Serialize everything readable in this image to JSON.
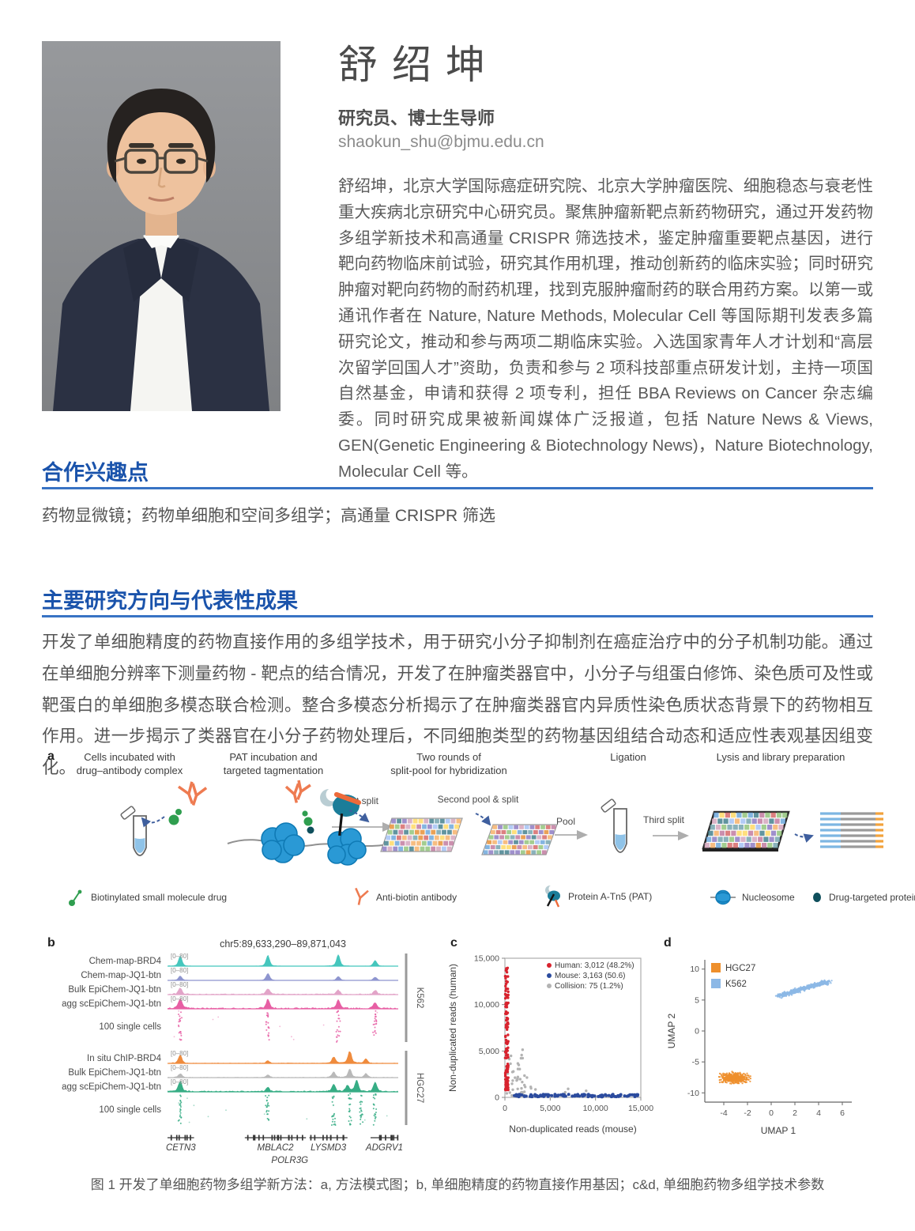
{
  "profile": {
    "name": "舒绍坤",
    "title": "研究员、博士生导师",
    "email": "shaokun_shu@bjmu.edu.cn",
    "bio": "舒绍坤，北京大学国际癌症研究院、北京大学肿瘤医院、细胞稳态与衰老性重大疾病北京研究中心研究员。聚焦肿瘤新靶点新药物研究，通过开发药物多组学新技术和高通量 CRISPR 筛选技术，鉴定肿瘤重要靶点基因，进行靶向药物临床前试验，研究其作用机理，推动创新药的临床实验；同时研究肿瘤对靶向药物的耐药机理，找到克服肿瘤耐药的联合用药方案。以第一或通讯作者在 Nature, Nature Methods, Molecular Cell 等国际期刊发表多篇研究论文，推动和参与两项二期临床实验。入选国家青年人才计划和“高层次留学回国人才”资助，负责和参与 2 项科技部重点研发计划，主持一项国自然基金，申请和获得 2 项专利，担任 BBA Reviews on Cancer 杂志编委。同时研究成果被新闻媒体广泛报道，包括 Nature News & Views, GEN(Genetic Engineering & Biotechnology News)，Nature Biotechnology, Molecular Cell 等。"
  },
  "sections": {
    "interests": {
      "heading": "合作兴趣点",
      "text": "药物显微镜；药物单细胞和空间多组学；高通量 CRISPR 筛选"
    },
    "research": {
      "heading": "主要研究方向与代表性成果",
      "text": "开发了单细胞精度的药物直接作用的多组学技术，用于研究小分子抑制剂在癌症治疗中的分子机制功能。通过在单细胞分辨率下测量药物 - 靶点的结合情况，开发了在肿瘤类器官中，小分子与组蛋白修饰、染色质可及性或靶蛋白的单细胞多模态联合检测。整合多模态分析揭示了在肿瘤类器官内异质性染色质状态背景下的药物相互作用。进一步揭示了类器官在小分子药物处理后，不同细胞类型的药物基因组结合动态和适应性表观基因组变化。"
    }
  },
  "colors": {
    "heading_blue": "#1a53ab",
    "rule_blue": "#3873c4",
    "body_gray": "#555555"
  },
  "figure": {
    "panel_a": {
      "label": "a",
      "steps": [
        "Cells incubated with\ndrug–antibody complex",
        "PAT incubation and\ntargeted tagmentation",
        "Two rounds of\nsplit-pool for hybridization",
        "Ligation",
        "Lysis and library preparation"
      ],
      "flow_labels": {
        "first_split": "First split",
        "second_pool_split": "Second pool & split",
        "pool": "Pool",
        "third_split": "Third split"
      },
      "legend": [
        {
          "icon": "biotinylated-drug-icon",
          "label": "Biotinylated small molecule drug",
          "color": "#2f9e4f"
        },
        {
          "icon": "anti-biotin-antibody-icon",
          "label": "Anti-biotin antibody",
          "color": "#ee7b51"
        },
        {
          "icon": "protein-a-tn5-icon",
          "label": "Protein A-Tn5 (PAT)",
          "color": "#1b7d99"
        },
        {
          "icon": "nucleosome-icon",
          "label": "Nucleosome",
          "color": "#2a99d5"
        },
        {
          "icon": "drug-targeted-protein-icon",
          "label": "Drug-targeted protein",
          "color": "#0f4f5c"
        }
      ]
    },
    "caption": "图 1 开发了单细胞药物多组学新方法：a, 方法模式图；b, 单细胞精度的药物直接作用基因；c&d, 单细胞药物多组学技术参数"
  },
  "chart_data": [
    {
      "id": "b",
      "panel_label": "b",
      "type": "genome-tracks",
      "region": "chr5:89,633,290–89,871,043",
      "range": "[0–80]",
      "tracks": [
        {
          "label": "Chem-map-BRD4",
          "group": "K562",
          "color": "#45c6bd",
          "type": "signal",
          "noise": 0.03,
          "peaks": [
            [
              0.055,
              0.8
            ],
            [
              0.435,
              0.85
            ],
            [
              0.74,
              0.9
            ],
            [
              0.9,
              0.45
            ]
          ]
        },
        {
          "label": "Chem-map-JQ1-btn",
          "group": "K562",
          "color": "#8e95cf",
          "type": "signal",
          "noise": 0.03,
          "peaks": [
            [
              0.055,
              0.35
            ],
            [
              0.435,
              0.55
            ],
            [
              0.74,
              0.3
            ],
            [
              0.9,
              0.25
            ]
          ]
        },
        {
          "label": "Bulk EpiChem-JQ1-btn",
          "group": "K562",
          "color": "#e2a4c8",
          "type": "signal",
          "noise": 0.09,
          "peaks": [
            [
              0.055,
              0.5
            ],
            [
              0.435,
              0.45
            ],
            [
              0.74,
              0.35
            ],
            [
              0.9,
              0.3
            ]
          ]
        },
        {
          "label": "agg scEpiChem-JQ1-btn",
          "group": "K562",
          "color": "#e75fa4",
          "type": "signal",
          "noise": 0.12,
          "peaks": [
            [
              0.055,
              0.78
            ],
            [
              0.435,
              0.72
            ],
            [
              0.74,
              0.68
            ],
            [
              0.9,
              0.45
            ]
          ]
        },
        {
          "label": "100 single cells",
          "group": "K562",
          "color": "#e75fa4",
          "type": "dots",
          "columns": [
            0.055,
            0.435,
            0.74,
            0.9
          ]
        },
        {
          "label": "In situ ChIP-BRD4",
          "group": "HGC27",
          "color": "#ef8b3d",
          "type": "signal",
          "noise": 0.06,
          "peaks": [
            [
              0.055,
              0.65
            ],
            [
              0.435,
              0.18
            ],
            [
              0.72,
              0.5
            ],
            [
              0.79,
              1.0
            ],
            [
              0.86,
              0.35
            ]
          ]
        },
        {
          "label": "Bulk EpiChem-JQ1-btn",
          "group": "HGC27",
          "color": "#b9b9b9",
          "type": "signal",
          "noise": 0.06,
          "peaks": [
            [
              0.055,
              0.3
            ],
            [
              0.435,
              0.2
            ],
            [
              0.72,
              0.45
            ],
            [
              0.79,
              0.65
            ],
            [
              0.86,
              0.3
            ]
          ]
        },
        {
          "label": "agg scEpiChem-JQ1-btn",
          "group": "HGC27",
          "color": "#36ad85",
          "type": "signal",
          "noise": 0.1,
          "peaks": [
            [
              0.055,
              0.82
            ],
            [
              0.435,
              0.3
            ],
            [
              0.72,
              0.55
            ],
            [
              0.78,
              0.5
            ],
            [
              0.82,
              0.88
            ],
            [
              0.9,
              0.75
            ]
          ]
        },
        {
          "label": "100 single cells",
          "group": "HGC27",
          "color": "#36ad85",
          "type": "dots",
          "columns": [
            0.055,
            0.435,
            0.72,
            0.79,
            0.84,
            0.9
          ]
        }
      ],
      "genes": [
        {
          "name": "CETN3",
          "start": 0.0,
          "end": 0.115
        },
        {
          "name": "MBLAC2",
          "start": 0.335,
          "end": 0.6
        },
        {
          "name": "LYSMD3",
          "start": 0.615,
          "end": 0.78
        },
        {
          "name": "ADGRV1",
          "start": 0.88,
          "end": 1.0
        }
      ],
      "gene_second_row": "POLR3G",
      "gene_second_row_pos": 0.53
    },
    {
      "id": "c",
      "panel_label": "c",
      "type": "scatter",
      "xlabel": "Non-duplicated reads (mouse)",
      "ylabel": "Non-duplicated reads (human)",
      "xlim": [
        0,
        15000
      ],
      "ylim": [
        0,
        15000
      ],
      "xticks": [
        "0",
        "5,000",
        "10,000",
        "15,000"
      ],
      "yticks": [
        "0",
        "5,000",
        "10,000",
        "15,000"
      ],
      "legend": [
        {
          "label": "Human: 3,012 (48.2%)",
          "color": "#d8232e"
        },
        {
          "label": "Mouse: 3,163 (50.6)",
          "color": "#2b4b9e"
        },
        {
          "label": "Collision: 75 (1.2%)",
          "color": "#b3b3b3"
        }
      ],
      "series_summary": [
        {
          "name": "Human",
          "count": 3012,
          "percent": 48.2,
          "distribution": "x near 0, y 800–14000"
        },
        {
          "name": "Mouse",
          "count": 3163,
          "percent": 50.6,
          "distribution": "y near 0, x 1000–14700"
        },
        {
          "name": "Collision",
          "count": 75,
          "percent": 1.2,
          "distribution": "near origin"
        }
      ]
    },
    {
      "id": "d",
      "panel_label": "d",
      "type": "scatter",
      "xlabel": "UMAP 1",
      "ylabel": "UMAP 2",
      "xlim": [
        -5.6,
        6.8
      ],
      "ylim": [
        -11.5,
        11.5
      ],
      "xticks": [
        -4,
        -2,
        0,
        2,
        4,
        6
      ],
      "yticks": [
        -10,
        -5,
        0,
        5,
        10
      ],
      "legend": [
        {
          "label": "HGC27",
          "color": "#ee8f2c"
        },
        {
          "label": "K562",
          "color": "#8cb8e6"
        }
      ],
      "clusters": [
        {
          "name": "HGC27",
          "color": "#ee8f2c",
          "center": [
            -3.1,
            -7.6
          ],
          "spread": [
            1.05,
            0.7
          ],
          "n": 420
        },
        {
          "name": "K562",
          "color": "#8cb8e6",
          "line": [
            [
              0.7,
              5.7
            ],
            [
              4.8,
              8.0
            ]
          ],
          "spread": 0.5,
          "n": 520
        }
      ]
    }
  ]
}
